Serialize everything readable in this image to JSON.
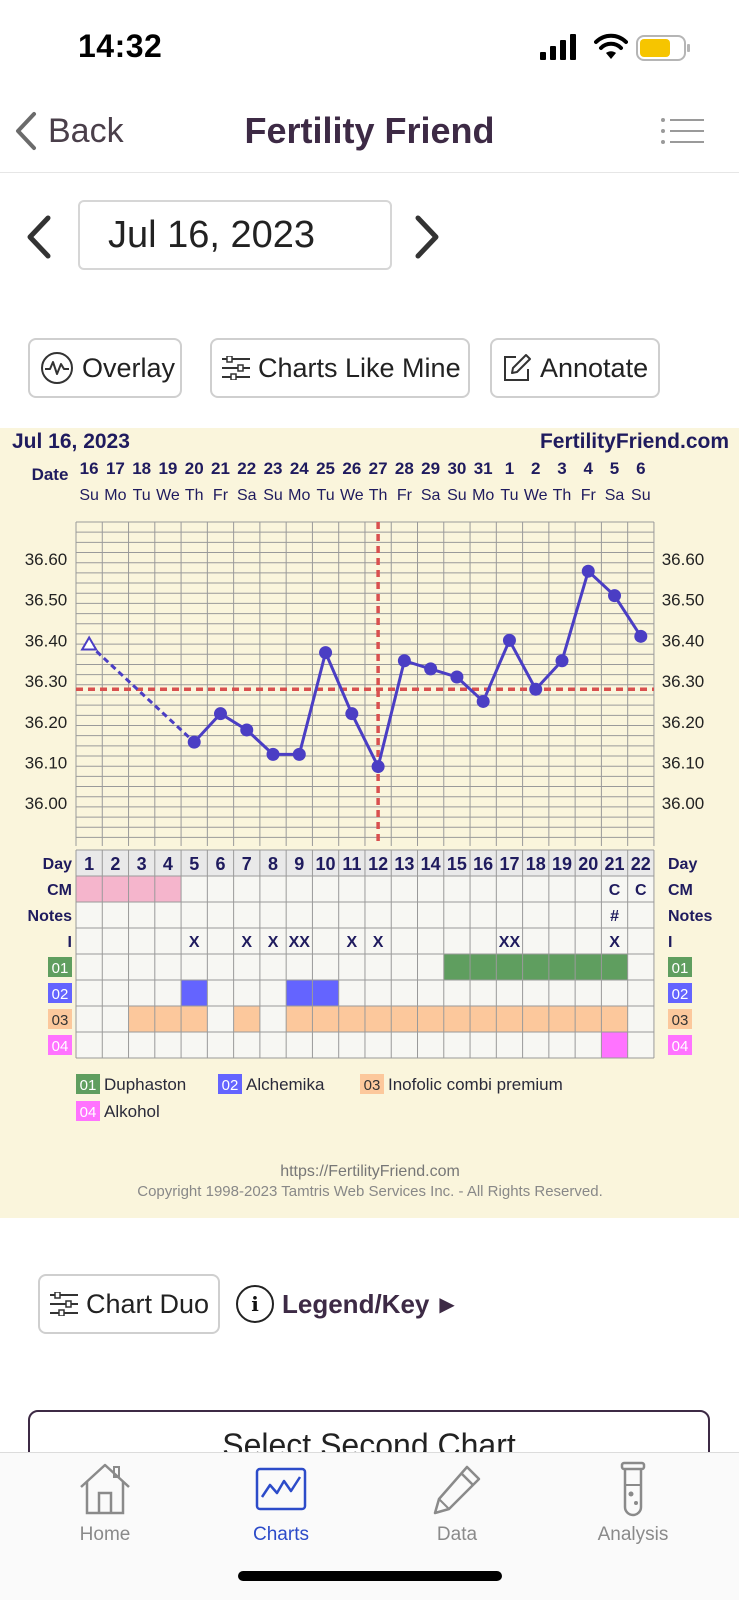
{
  "status_bar": {
    "time": "14:32"
  },
  "nav": {
    "back_label": "Back",
    "title": "Fertility Friend"
  },
  "date_nav": {
    "date": "Jul 16, 2023"
  },
  "actions": {
    "overlay": "Overlay",
    "charts_like_mine": "Charts Like Mine",
    "annotate": "Annotate"
  },
  "chart_data": {
    "type": "line",
    "header_date": "Jul 16, 2023",
    "brand": "FertilityFriend.com",
    "date_row_label": "Date",
    "dates": [
      "16",
      "17",
      "18",
      "19",
      "20",
      "21",
      "22",
      "23",
      "24",
      "25",
      "26",
      "27",
      "28",
      "29",
      "30",
      "31",
      "1",
      "2",
      "3",
      "4",
      "5",
      "6"
    ],
    "weekdays": [
      "Su",
      "Mo",
      "Tu",
      "We",
      "Th",
      "Fr",
      "Sa",
      "Su",
      "Mo",
      "Tu",
      "We",
      "Th",
      "Fr",
      "Sa",
      "Su",
      "Mo",
      "Tu",
      "We",
      "Th",
      "Fr",
      "Sa",
      "Su"
    ],
    "y_ticks": [
      "36.60",
      "36.50",
      "36.40",
      "36.30",
      "36.20",
      "36.10",
      "36.00"
    ],
    "ylim": [
      35.9,
      36.7
    ],
    "temps": [
      36.39,
      null,
      null,
      null,
      36.15,
      36.22,
      36.18,
      36.12,
      36.12,
      36.37,
      36.22,
      36.09,
      36.35,
      36.33,
      36.31,
      36.25,
      36.4,
      36.28,
      36.35,
      36.57,
      36.51,
      36.41
    ],
    "discarded_days": [
      1
    ],
    "coverline": 36.28,
    "ovulation_day": 12,
    "day_row_label": "Day",
    "days": [
      "1",
      "2",
      "3",
      "4",
      "5",
      "6",
      "7",
      "8",
      "9",
      "10",
      "11",
      "12",
      "13",
      "14",
      "15",
      "16",
      "17",
      "18",
      "19",
      "20",
      "21",
      "22"
    ],
    "row_labels": {
      "cm": "CM",
      "notes": "Notes",
      "intercourse": "I"
    },
    "cm_marks": [
      {
        "day": 21,
        "text": "C"
      },
      {
        "day": 22,
        "text": "C"
      }
    ],
    "notes_marks": [
      {
        "day": 21,
        "text": "#"
      }
    ],
    "intercourse_marks": [
      {
        "day": 5,
        "text": "X"
      },
      {
        "day": 7,
        "text": "X"
      },
      {
        "day": 8,
        "text": "X"
      },
      {
        "day": 9,
        "text": "XX"
      },
      {
        "day": 11,
        "text": "X"
      },
      {
        "day": 12,
        "text": "X"
      },
      {
        "day": 17,
        "text": "XX"
      },
      {
        "day": 21,
        "text": "X"
      }
    ],
    "menstruation_days": [
      1,
      2,
      3,
      4
    ],
    "meds": [
      {
        "code": "01",
        "name": "Duphaston",
        "color": "#5f9e5f",
        "days": [
          15,
          16,
          17,
          18,
          19,
          20,
          21
        ]
      },
      {
        "code": "02",
        "name": "Alchemika",
        "color": "#6464ff",
        "days": [
          5,
          9,
          10
        ]
      },
      {
        "code": "03",
        "name": "Inofolic combi premium",
        "color": "#fcc89c",
        "days": [
          3,
          4,
          5,
          7,
          9,
          10,
          11,
          12,
          13,
          14,
          15,
          16,
          17,
          18,
          19,
          20,
          21
        ]
      },
      {
        "code": "04",
        "name": "Alkohol",
        "color": "#ff73ff",
        "days": [
          21
        ]
      }
    ],
    "footer_url": "https://FertilityFriend.com",
    "footer_copyright": "Copyright 1998-2023 Tamtris Web Services Inc. - All Rights Reserved."
  },
  "bottom_actions": {
    "chart_duo": "Chart Duo",
    "legend_key": "Legend/Key",
    "legend_arrow": "▶",
    "select_second_chart": "Select Second Chart",
    "info_glyph": "i"
  },
  "tabs": [
    {
      "label": "Home",
      "icon": "home-icon"
    },
    {
      "label": "Charts",
      "icon": "chart-icon",
      "active": true
    },
    {
      "label": "Data",
      "icon": "pencil-icon"
    },
    {
      "label": "Analysis",
      "icon": "test-tube-icon"
    }
  ],
  "colors": {
    "accent": "#2c4bc9",
    "line": "#4b3ec4",
    "coverline": "#d9504f",
    "chart_bg": "#faf5dc"
  }
}
